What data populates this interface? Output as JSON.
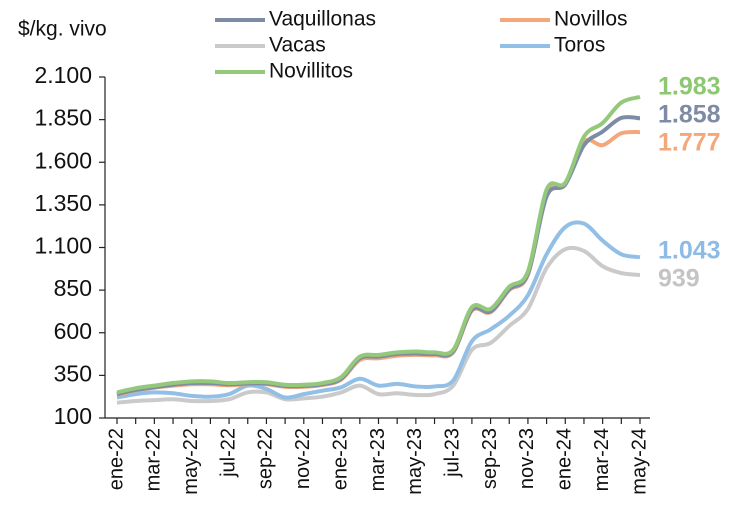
{
  "chart_data": {
    "type": "line",
    "ylabel": "$/kg. vivo",
    "categories": [
      "ene-22",
      null,
      "mar-22",
      null,
      "may-22",
      null,
      "jul-22",
      null,
      "sep-22",
      null,
      "nov-22",
      null,
      "ene-23",
      null,
      "mar-23",
      null,
      "may-23",
      null,
      "jul-23",
      null,
      "sep-23",
      null,
      "nov-23",
      null,
      "ene-24",
      null,
      "mar-24",
      null,
      "may-24"
    ],
    "ylim": [
      100,
      2100
    ],
    "yticks": [
      100,
      350,
      600,
      850,
      {
        "value": 1100,
        "label": "1.100"
      },
      {
        "value": 1350,
        "label": "1.350"
      },
      {
        "value": 1600,
        "label": "1.600"
      },
      {
        "value": 1850,
        "label": "1.850"
      },
      {
        "value": 2100,
        "label": "2.100"
      }
    ],
    "series": [
      {
        "name": "Vaquillonas",
        "color": "#7d8ca4",
        "label_color": "#7d8ca4",
        "values": [
          240,
          265,
          280,
          295,
          305,
          305,
          298,
          302,
          302,
          288,
          288,
          298,
          330,
          450,
          460,
          475,
          478,
          475,
          490,
          735,
          725,
          855,
          945,
          1400,
          1470,
          1700,
          1780,
          1860,
          1858
        ],
        "value_labels": [
          null,
          null,
          null,
          null,
          null,
          null,
          null,
          null,
          null,
          null,
          null,
          null,
          null,
          null,
          null,
          null,
          null,
          null,
          null,
          null,
          null,
          null,
          null,
          null,
          null,
          null,
          null,
          null,
          "1.858"
        ]
      },
      {
        "name": "Novillos",
        "color": "#f5a77c",
        "label_color": "#f5a77c",
        "values": [
          235,
          262,
          278,
          290,
          298,
          298,
          292,
          298,
          298,
          283,
          283,
          293,
          325,
          440,
          450,
          465,
          470,
          468,
          485,
          730,
          720,
          850,
          940,
          1420,
          1470,
          1720,
          1700,
          1770,
          1777
        ],
        "value_labels": [
          null,
          null,
          null,
          null,
          null,
          null,
          null,
          null,
          null,
          null,
          null,
          null,
          null,
          null,
          null,
          null,
          null,
          null,
          null,
          null,
          null,
          null,
          null,
          null,
          null,
          null,
          null,
          null,
          "1.777"
        ]
      },
      {
        "name": "Vacas",
        "color": "#cacaca",
        "label_color": "#c4c4c4",
        "values": [
          190,
          200,
          205,
          210,
          200,
          200,
          210,
          250,
          250,
          210,
          215,
          225,
          250,
          290,
          240,
          245,
          235,
          240,
          290,
          500,
          540,
          640,
          740,
          980,
          1090,
          1080,
          990,
          950,
          939
        ]
      },
      {
        "name": "Toros",
        "color": "#92bfe6",
        "label_color": "#8dbbe6",
        "values": [
          220,
          240,
          250,
          245,
          230,
          225,
          240,
          290,
          270,
          220,
          240,
          260,
          280,
          330,
          290,
          300,
          285,
          285,
          320,
          550,
          620,
          700,
          820,
          1060,
          1220,
          1240,
          1140,
          1060,
          1043
        ],
        "value_labels": [
          null,
          null,
          null,
          null,
          null,
          null,
          null,
          null,
          null,
          null,
          null,
          null,
          null,
          null,
          null,
          null,
          null,
          null,
          null,
          null,
          null,
          null,
          null,
          null,
          null,
          null,
          null,
          null,
          "1.043"
        ]
      },
      {
        "name": "Novillitos",
        "color": "#94c97c",
        "label_color": "#8cc871",
        "values": [
          250,
          275,
          290,
          305,
          315,
          315,
          305,
          310,
          310,
          295,
          295,
          305,
          340,
          460,
          470,
          485,
          490,
          485,
          500,
          750,
          740,
          870,
          960,
          1440,
          1480,
          1750,
          1830,
          1950,
          1983
        ],
        "value_labels": [
          null,
          null,
          null,
          null,
          null,
          null,
          null,
          null,
          null,
          null,
          null,
          null,
          null,
          null,
          null,
          null,
          null,
          null,
          null,
          null,
          null,
          null,
          null,
          null,
          null,
          null,
          null,
          null,
          "1.983"
        ]
      }
    ]
  }
}
